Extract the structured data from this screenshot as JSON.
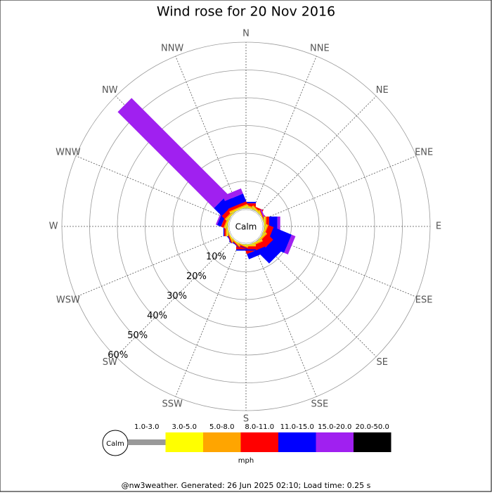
{
  "chart_data": {
    "type": "rose",
    "title": "Wind rose for 20 Nov 2016",
    "calm_label": "Calm",
    "directions": [
      "N",
      "NNE",
      "NE",
      "ENE",
      "E",
      "ESE",
      "SE",
      "SSE",
      "S",
      "SSW",
      "SW",
      "WSW",
      "W",
      "WNW",
      "NW",
      "NNW"
    ],
    "rlim": [
      0,
      60
    ],
    "rticks": [
      {
        "value": 10,
        "label": "10%"
      },
      {
        "value": 20,
        "label": "20%"
      },
      {
        "value": 30,
        "label": "30%"
      },
      {
        "value": 40,
        "label": "40%"
      },
      {
        "value": 50,
        "label": "50%"
      },
      {
        "value": 60,
        "label": "60%"
      }
    ],
    "series": [
      {
        "name": "1.0-3.0",
        "color": "#999999",
        "values": [
          0.2,
          0.2,
          0.2,
          0.1,
          0.2,
          0.2,
          0.2,
          0.2,
          0.2,
          0.1,
          0.1,
          0.1,
          0.2,
          0.2,
          0.2,
          0.2
        ]
      },
      {
        "name": "3.0-5.0",
        "color": "#ffff00",
        "values": [
          0.3,
          0.3,
          0.3,
          0.2,
          0.3,
          0.3,
          0.3,
          0.3,
          0.3,
          0.2,
          0.2,
          0.2,
          0.3,
          0.3,
          0.3,
          0.3
        ]
      },
      {
        "name": "5.0-8.0",
        "color": "#ffa500",
        "values": [
          0.5,
          0.5,
          0.4,
          0.2,
          0.5,
          0.5,
          0.5,
          0.5,
          0.4,
          0.3,
          0.3,
          0.3,
          0.5,
          0.5,
          0.5,
          0.5
        ]
      },
      {
        "name": "8.0-11.0",
        "color": "#ff0000",
        "values": [
          1,
          0.5,
          0.3,
          0.2,
          1,
          2,
          3,
          2,
          1,
          0.3,
          0.3,
          0.3,
          0.5,
          1,
          1.5,
          1
        ]
      },
      {
        "name": "11.0-15.0",
        "color": "#0000ff",
        "values": [
          0.5,
          0,
          0,
          0,
          3,
          7,
          5,
          2,
          0.5,
          0.2,
          0.2,
          0.2,
          0.3,
          1.5,
          4,
          3
        ]
      },
      {
        "name": "15.0-20.0",
        "color": "#a020f0",
        "values": [
          0,
          0,
          0,
          0.5,
          1,
          1.5,
          0,
          0,
          0,
          0,
          0,
          0,
          0,
          0.5,
          49,
          2
        ]
      },
      {
        "name": "20.0-50.0",
        "color": "#000000",
        "values": [
          0,
          0,
          0,
          0,
          0,
          0,
          0,
          0,
          0,
          0,
          0,
          0,
          0,
          0,
          0,
          0
        ]
      }
    ],
    "legend_title": "mph",
    "footer": "@nw3weather. Generated: 26 Jun 2025 02:10; Load time: 0.25 s"
  }
}
